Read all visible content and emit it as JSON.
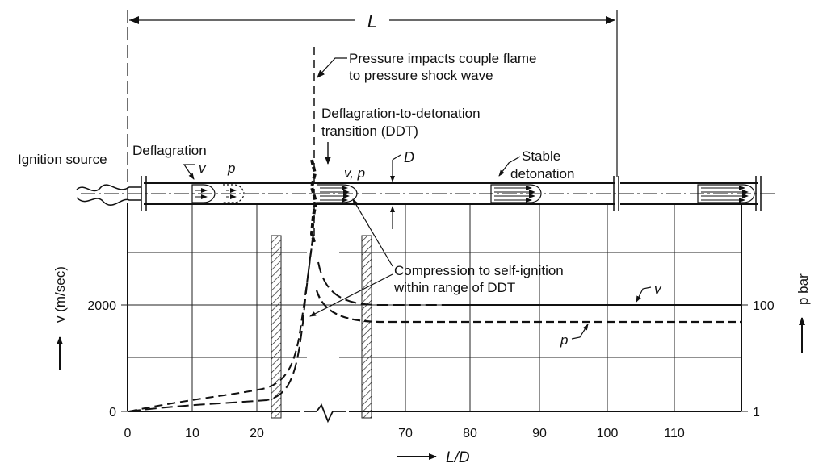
{
  "labels": {
    "L_top": "L",
    "pressure_impacts_1": "Pressure impacts couple flame",
    "pressure_impacts_2": "to pressure shock wave",
    "ddt_1": "Deflagration-to-detonation",
    "ddt_2": "transition (DDT)",
    "ignition_source": "Ignition source",
    "deflagration": "Deflagration",
    "v_small": "v",
    "p_small": "p",
    "vp": "v, p",
    "D": "D",
    "stable_1": "Stable",
    "stable_2": "detonation",
    "compression_1": "Compression to self-ignition",
    "compression_2": "within range of DDT",
    "v_curve": "v",
    "p_curve": "p",
    "y_left_label": "v (m/sec)",
    "y_right_label": "p bar",
    "x_label": "L/D"
  },
  "x_ticks": [
    "0",
    "10",
    "20",
    "70",
    "80",
    "90",
    "100",
    "110"
  ],
  "y_left_ticks": [
    "0",
    "2000"
  ],
  "y_right_ticks": [
    "1",
    "100"
  ]
}
